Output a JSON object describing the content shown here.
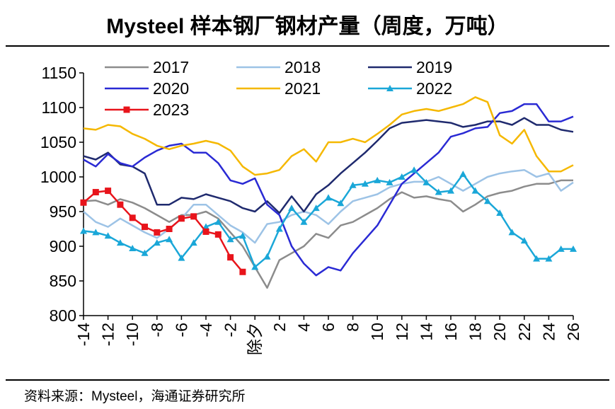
{
  "page": {
    "title": "Mysteel 样本钢厂钢材产量（周度，万吨）",
    "source": "资料来源：Mysteel，海通证券研究所"
  },
  "chart_data": {
    "type": "line",
    "title": "Mysteel 样本钢厂钢材产量（周度，万吨）",
    "xlabel": "",
    "ylabel": "",
    "x_ticks": [
      "-14",
      "-12",
      "-10",
      "-8",
      "-6",
      "-4",
      "-2",
      "除夕",
      "2",
      "4",
      "6",
      "8",
      "10",
      "12",
      "14",
      "16",
      "18",
      "20",
      "22",
      "24",
      "26"
    ],
    "xlim": [
      -14,
      26
    ],
    "ylim": [
      800,
      1150
    ],
    "y_ticks": [
      800,
      850,
      900,
      950,
      1000,
      1050,
      1100,
      1150
    ],
    "grid": false,
    "legend": "top",
    "series": [
      {
        "name": "2017",
        "color": "#8c8c8c",
        "marker": "none",
        "x": [
          -14,
          -13,
          -12,
          -11,
          -10,
          -9,
          -8,
          -7,
          -6,
          -5,
          -4,
          -3,
          -2,
          -1,
          0,
          1,
          2,
          3,
          4,
          5,
          6,
          7,
          8,
          9,
          10,
          11,
          12,
          13,
          14,
          15,
          16,
          17,
          18,
          19,
          20,
          21,
          22,
          23,
          24,
          25,
          26
        ],
        "y": [
          965,
          966,
          960,
          968,
          963,
          955,
          945,
          935,
          945,
          945,
          950,
          940,
          920,
          900,
          870,
          840,
          880,
          890,
          900,
          918,
          912,
          930,
          935,
          945,
          955,
          968,
          978,
          970,
          972,
          968,
          965,
          950,
          960,
          972,
          977,
          980,
          986,
          990,
          990,
          995,
          995
        ]
      },
      {
        "name": "2018",
        "color": "#9dc3e6",
        "marker": "none",
        "x": [
          -14,
          -13,
          -12,
          -11,
          -10,
          -9,
          -8,
          -7,
          -6,
          -5,
          -4,
          -3,
          -2,
          -1,
          0,
          1,
          2,
          3,
          4,
          5,
          6,
          7,
          8,
          9,
          10,
          11,
          12,
          13,
          14,
          15,
          16,
          17,
          18,
          19,
          20,
          21,
          22,
          23,
          24,
          25,
          26
        ],
        "y": [
          950,
          935,
          928,
          940,
          930,
          920,
          912,
          925,
          940,
          960,
          960,
          945,
          930,
          920,
          905,
          932,
          935,
          945,
          950,
          945,
          932,
          950,
          965,
          970,
          975,
          985,
          990,
          993,
          993,
          1000,
          990,
          980,
          990,
          1000,
          1005,
          1008,
          1010,
          1000,
          1005,
          980,
          992
        ]
      },
      {
        "name": "2019",
        "color": "#1f2a6e",
        "marker": "none",
        "x": [
          -14,
          -13,
          -12,
          -11,
          -10,
          -9,
          -8,
          -7,
          -6,
          -5,
          -4,
          -3,
          -2,
          -1,
          0,
          1,
          2,
          3,
          4,
          5,
          6,
          7,
          8,
          9,
          10,
          11,
          12,
          13,
          14,
          15,
          16,
          17,
          18,
          19,
          20,
          21,
          22,
          23,
          24,
          25,
          26
        ],
        "y": [
          1030,
          1025,
          1035,
          1018,
          1015,
          1005,
          960,
          960,
          970,
          968,
          975,
          970,
          965,
          955,
          950,
          965,
          948,
          972,
          950,
          975,
          988,
          1005,
          1020,
          1035,
          1052,
          1070,
          1078,
          1080,
          1082,
          1080,
          1078,
          1072,
          1075,
          1080,
          1080,
          1075,
          1085,
          1075,
          1075,
          1068,
          1065
        ]
      },
      {
        "name": "2020",
        "color": "#2a2ad4",
        "marker": "none",
        "x": [
          -14,
          -13,
          -12,
          -11,
          -10,
          -9,
          -8,
          -7,
          -6,
          -5,
          -4,
          -3,
          -2,
          -1,
          0,
          1,
          2,
          3,
          4,
          5,
          6,
          7,
          8,
          9,
          10,
          11,
          12,
          13,
          14,
          15,
          16,
          17,
          18,
          19,
          20,
          21,
          22,
          23,
          24,
          25,
          26
        ],
        "y": [
          1025,
          1015,
          1033,
          1020,
          1015,
          1028,
          1038,
          1045,
          1048,
          1035,
          1035,
          1020,
          995,
          990,
          998,
          960,
          945,
          900,
          875,
          858,
          870,
          865,
          890,
          910,
          930,
          960,
          990,
          1005,
          1020,
          1035,
          1058,
          1063,
          1070,
          1072,
          1092,
          1095,
          1105,
          1105,
          1080,
          1080,
          1087
        ]
      },
      {
        "name": "2021",
        "color": "#f5b800",
        "marker": "none",
        "x": [
          -14,
          -13,
          -12,
          -11,
          -10,
          -9,
          -8,
          -7,
          -6,
          -5,
          -4,
          -3,
          -2,
          -1,
          0,
          1,
          2,
          3,
          4,
          5,
          6,
          7,
          8,
          9,
          10,
          11,
          12,
          13,
          14,
          15,
          16,
          17,
          18,
          19,
          20,
          21,
          22,
          23,
          24,
          25,
          26
        ],
        "y": [
          1070,
          1068,
          1075,
          1073,
          1062,
          1055,
          1045,
          1040,
          1045,
          1048,
          1052,
          1048,
          1038,
          1015,
          1003,
          1005,
          1010,
          1030,
          1040,
          1022,
          1050,
          1050,
          1055,
          1050,
          1062,
          1075,
          1090,
          1095,
          1098,
          1095,
          1100,
          1105,
          1115,
          1108,
          1060,
          1048,
          1068,
          1030,
          1008,
          1008,
          1017
        ]
      },
      {
        "name": "2022",
        "color": "#1aa7d8",
        "marker": "triangle",
        "x": [
          -14,
          -13,
          -12,
          -11,
          -10,
          -9,
          -8,
          -7,
          -6,
          -5,
          -4,
          -3,
          -2,
          -1,
          0,
          1,
          2,
          3,
          4,
          5,
          6,
          7,
          8,
          9,
          10,
          11,
          12,
          13,
          14,
          15,
          16,
          17,
          18,
          19,
          20,
          21,
          22,
          23,
          24,
          25,
          26
        ],
        "y": [
          922,
          920,
          915,
          905,
          897,
          890,
          905,
          910,
          883,
          905,
          928,
          935,
          910,
          915,
          870,
          885,
          925,
          955,
          935,
          955,
          970,
          962,
          988,
          990,
          995,
          992,
          1000,
          1010,
          992,
          978,
          980,
          1004,
          980,
          965,
          948,
          920,
          908,
          882,
          882,
          896,
          896
        ]
      },
      {
        "name": "2023",
        "color": "#e8141b",
        "marker": "square",
        "x": [
          -14,
          -13,
          -12,
          -11,
          -10,
          -9,
          -8,
          -7,
          -6,
          -5,
          -4,
          -3,
          -2,
          -1
        ],
        "y": [
          963,
          978,
          980,
          960,
          941,
          928,
          920,
          925,
          940,
          943,
          921,
          917,
          884,
          863
        ]
      }
    ]
  }
}
